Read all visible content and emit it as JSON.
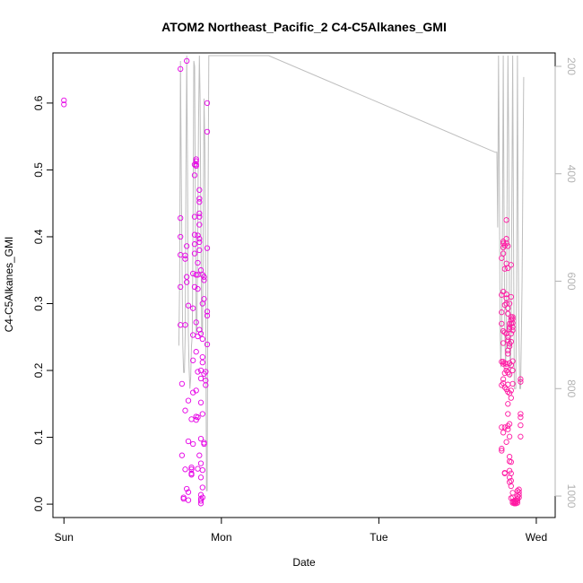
{
  "chart_data": {
    "type": "scatter",
    "title": "ATOM2 Northeast_Pacific_2 C4-C5Alkanes_GMI",
    "xlabel": "Date",
    "ylabel": "C4-C5Alkanes_GMI",
    "x_tick_labels": [
      "Sun",
      "Mon",
      "Tue",
      "Wed"
    ],
    "y_ticks": [
      "0.0",
      "0.1",
      "0.2",
      "0.3",
      "0.4",
      "0.5",
      "0.6"
    ],
    "right_axis_ticks": [
      "200",
      "400",
      "600",
      "800",
      "1000"
    ],
    "xlim": [
      -0.07,
      3.12
    ],
    "ylim": [
      -0.02,
      0.675
    ],
    "right_ylim": [
      1040,
      175
    ],
    "right_axis_reversed": true,
    "grid": false,
    "legend": "none",
    "colors": {
      "points": "#e600e6",
      "points_late": "#ff1aa3",
      "line": "#bebebe",
      "axis": "#000000",
      "right_axis": "#b3b3b3"
    },
    "series": [
      {
        "type": "scatter",
        "values": [
          [
            0.0,
            0.604
          ],
          [
            0.0,
            0.598
          ],
          [
            0.74,
            0.651
          ],
          [
            0.74,
            0.428
          ],
          [
            0.74,
            0.4
          ],
          [
            0.74,
            0.373
          ],
          [
            0.74,
            0.325
          ],
          [
            0.74,
            0.268
          ],
          [
            0.75,
            0.18
          ],
          [
            0.75,
            0.073
          ],
          [
            0.76,
            0.01
          ],
          [
            0.76,
            0.008
          ],
          [
            0.77,
            0.372
          ],
          [
            0.77,
            0.367
          ],
          [
            0.77,
            0.268
          ],
          [
            0.77,
            0.14
          ],
          [
            0.77,
            0.052
          ],
          [
            0.78,
            0.386
          ],
          [
            0.78,
            0.34
          ],
          [
            0.78,
            0.332
          ],
          [
            0.78,
            0.023
          ],
          [
            0.78,
            0.663
          ],
          [
            0.79,
            0.297
          ],
          [
            0.79,
            0.155
          ],
          [
            0.79,
            0.094
          ],
          [
            0.79,
            0.018
          ],
          [
            0.79,
            0.006
          ],
          [
            0.81,
            0.046
          ],
          [
            0.81,
            0.044
          ],
          [
            0.81,
            0.055
          ],
          [
            0.81,
            0.052
          ],
          [
            0.81,
            0.127
          ],
          [
            0.82,
            0.345
          ],
          [
            0.82,
            0.293
          ],
          [
            0.82,
            0.253
          ],
          [
            0.82,
            0.215
          ],
          [
            0.82,
            0.167
          ],
          [
            0.82,
            0.09
          ],
          [
            0.83,
            0.492
          ],
          [
            0.83,
            0.508
          ],
          [
            0.83,
            0.43
          ],
          [
            0.83,
            0.403
          ],
          [
            0.83,
            0.389
          ],
          [
            0.83,
            0.375
          ],
          [
            0.83,
            0.325
          ],
          [
            0.84,
            0.516
          ],
          [
            0.84,
            0.513
          ],
          [
            0.84,
            0.506
          ],
          [
            0.84,
            0.508
          ],
          [
            0.84,
            0.343
          ],
          [
            0.84,
            0.272
          ],
          [
            0.84,
            0.228
          ],
          [
            0.84,
            0.17
          ],
          [
            0.84,
            0.131
          ],
          [
            0.84,
            0.126
          ],
          [
            0.85,
            0.402
          ],
          [
            0.85,
            0.361
          ],
          [
            0.85,
            0.343
          ],
          [
            0.85,
            0.322
          ],
          [
            0.85,
            0.251
          ],
          [
            0.85,
            0.198
          ],
          [
            0.85,
            0.13
          ],
          [
            0.85,
            0.053
          ],
          [
            0.86,
            0.47
          ],
          [
            0.86,
            0.457
          ],
          [
            0.86,
            0.452
          ],
          [
            0.86,
            0.435
          ],
          [
            0.86,
            0.43
          ],
          [
            0.86,
            0.418
          ],
          [
            0.86,
            0.397
          ],
          [
            0.86,
            0.392
          ],
          [
            0.86,
            0.38
          ],
          [
            0.86,
            0.261
          ],
          [
            0.86,
            0.073
          ],
          [
            0.87,
            0.35
          ],
          [
            0.87,
            0.255
          ],
          [
            0.87,
            0.2
          ],
          [
            0.87,
            0.188
          ],
          [
            0.87,
            0.152
          ],
          [
            0.87,
            0.098
          ],
          [
            0.87,
            0.061
          ],
          [
            0.87,
            0.04
          ],
          [
            0.87,
            0.014
          ],
          [
            0.87,
            0.008
          ],
          [
            0.87,
            0.005
          ],
          [
            0.87,
            0.001
          ],
          [
            0.88,
            0.343
          ],
          [
            0.88,
            0.3
          ],
          [
            0.88,
            0.247
          ],
          [
            0.88,
            0.22
          ],
          [
            0.88,
            0.212
          ],
          [
            0.88,
            0.135
          ],
          [
            0.88,
            0.051
          ],
          [
            0.88,
            0.025
          ],
          [
            0.88,
            0.01
          ],
          [
            0.89,
            0.34
          ],
          [
            0.89,
            0.335
          ],
          [
            0.89,
            0.307
          ],
          [
            0.89,
            0.195
          ],
          [
            0.89,
            0.092
          ],
          [
            0.89,
            0.09
          ],
          [
            0.9,
            0.198
          ],
          [
            0.9,
            0.185
          ],
          [
            0.9,
            0.178
          ],
          [
            0.91,
            0.239
          ],
          [
            0.91,
            0.288
          ],
          [
            0.91,
            0.282
          ],
          [
            0.91,
            0.383
          ],
          [
            0.91,
            0.6
          ],
          [
            0.91,
            0.557
          ],
          [
            2.78,
            0.368
          ],
          [
            2.78,
            0.313
          ],
          [
            2.78,
            0.287
          ],
          [
            2.78,
            0.27
          ],
          [
            2.78,
            0.213
          ],
          [
            2.78,
            0.178
          ],
          [
            2.78,
            0.115
          ],
          [
            2.78,
            0.083
          ],
          [
            2.78,
            0.08
          ],
          [
            2.79,
            0.393
          ],
          [
            2.79,
            0.39
          ],
          [
            2.79,
            0.384
          ],
          [
            2.79,
            0.375
          ],
          [
            2.79,
            0.318
          ],
          [
            2.79,
            0.259
          ],
          [
            2.79,
            0.241
          ],
          [
            2.79,
            0.213
          ],
          [
            2.79,
            0.21
          ],
          [
            2.79,
            0.187
          ],
          [
            2.79,
            0.181
          ],
          [
            2.79,
            0.107
          ],
          [
            2.8,
            0.387
          ],
          [
            2.8,
            0.352
          ],
          [
            2.8,
            0.298
          ],
          [
            2.8,
            0.257
          ],
          [
            2.8,
            0.211
          ],
          [
            2.8,
            0.196
          ],
          [
            2.8,
            0.175
          ],
          [
            2.8,
            0.115
          ],
          [
            2.8,
            0.047
          ],
          [
            2.8,
            0.046
          ],
          [
            2.81,
            0.425
          ],
          [
            2.81,
            0.397
          ],
          [
            2.81,
            0.39
          ],
          [
            2.81,
            0.36
          ],
          [
            2.81,
            0.314
          ],
          [
            2.81,
            0.308
          ],
          [
            2.81,
            0.3
          ],
          [
            2.81,
            0.255
          ],
          [
            2.81,
            0.21
          ],
          [
            2.81,
            0.205
          ],
          [
            2.81,
            0.2
          ],
          [
            2.81,
            0.172
          ],
          [
            2.81,
            0.093
          ],
          [
            2.82,
            0.386
          ],
          [
            2.82,
            0.353
          ],
          [
            2.82,
            0.293
          ],
          [
            2.82,
            0.285
          ],
          [
            2.82,
            0.25
          ],
          [
            2.82,
            0.245
          ],
          [
            2.82,
            0.23
          ],
          [
            2.82,
            0.225
          ],
          [
            2.82,
            0.197
          ],
          [
            2.82,
            0.179
          ],
          [
            2.82,
            0.168
          ],
          [
            2.82,
            0.15
          ],
          [
            2.82,
            0.135
          ],
          [
            2.82,
            0.117
          ],
          [
            2.82,
            0.112
          ],
          [
            2.83,
            0.3
          ],
          [
            2.83,
            0.27
          ],
          [
            2.83,
            0.265
          ],
          [
            2.83,
            0.262
          ],
          [
            2.83,
            0.24
          ],
          [
            2.83,
            0.236
          ],
          [
            2.83,
            0.211
          ],
          [
            2.83,
            0.194
          ],
          [
            2.83,
            0.166
          ],
          [
            2.83,
            0.12
          ],
          [
            2.83,
            0.101
          ],
          [
            2.83,
            0.071
          ],
          [
            2.83,
            0.064
          ],
          [
            2.83,
            0.05
          ],
          [
            2.83,
            0.04
          ],
          [
            2.83,
            0.033
          ],
          [
            2.84,
            0.358
          ],
          [
            2.84,
            0.31
          ],
          [
            2.84,
            0.28
          ],
          [
            2.84,
            0.276
          ],
          [
            2.84,
            0.27
          ],
          [
            2.84,
            0.255
          ],
          [
            2.84,
            0.243
          ],
          [
            2.84,
            0.208
          ],
          [
            2.84,
            0.17
          ],
          [
            2.84,
            0.159
          ],
          [
            2.84,
            0.063
          ],
          [
            2.84,
            0.046
          ],
          [
            2.84,
            0.035
          ],
          [
            2.84,
            0.027
          ],
          [
            2.84,
            0.009
          ],
          [
            2.85,
            0.28
          ],
          [
            2.85,
            0.277
          ],
          [
            2.85,
            0.271
          ],
          [
            2.85,
            0.265
          ],
          [
            2.85,
            0.26
          ],
          [
            2.85,
            0.214
          ],
          [
            2.85,
            0.2
          ],
          [
            2.85,
            0.18
          ],
          [
            2.85,
            0.002
          ],
          [
            2.85,
            0.004
          ],
          [
            2.85,
            0.01
          ],
          [
            2.85,
            0.017
          ],
          [
            2.86,
            0.001
          ],
          [
            2.86,
            0.002
          ],
          [
            2.86,
            0.003
          ],
          [
            2.86,
            0.004
          ],
          [
            2.86,
            0.005
          ],
          [
            2.87,
            0.001
          ],
          [
            2.87,
            0.003
          ],
          [
            2.87,
            0.006
          ],
          [
            2.88,
            0.002
          ],
          [
            2.88,
            0.005
          ],
          [
            2.88,
            0.008
          ],
          [
            2.88,
            0.012
          ],
          [
            2.88,
            0.02
          ],
          [
            2.89,
            0.01
          ],
          [
            2.89,
            0.014
          ],
          [
            2.89,
            0.018
          ],
          [
            2.89,
            0.022
          ],
          [
            2.9,
            0.135
          ],
          [
            2.9,
            0.13
          ],
          [
            2.9,
            0.118
          ],
          [
            2.9,
            0.101
          ],
          [
            2.9,
            0.183
          ],
          [
            2.9,
            0.187
          ]
        ]
      },
      {
        "type": "line",
        "axis": "right",
        "values": [
          [
            0.73,
            720
          ],
          [
            0.735,
            600
          ],
          [
            0.74,
            190
          ],
          [
            0.745,
            400
          ],
          [
            0.75,
            560
          ],
          [
            0.755,
            720
          ],
          [
            0.76,
            770
          ],
          [
            0.765,
            770
          ],
          [
            0.77,
            700
          ],
          [
            0.775,
            400
          ],
          [
            0.78,
            180
          ],
          [
            0.785,
            400
          ],
          [
            0.79,
            700
          ],
          [
            0.795,
            760
          ],
          [
            0.8,
            800
          ],
          [
            0.805,
            780
          ],
          [
            0.81,
            720
          ],
          [
            0.815,
            700
          ],
          [
            0.82,
            500
          ],
          [
            0.825,
            190
          ],
          [
            0.83,
            200
          ],
          [
            0.835,
            500
          ],
          [
            0.84,
            700
          ],
          [
            0.845,
            690
          ],
          [
            0.85,
            500
          ],
          [
            0.855,
            300
          ],
          [
            0.86,
            180
          ],
          [
            0.865,
            260
          ],
          [
            0.87,
            500
          ],
          [
            0.875,
            700
          ],
          [
            0.88,
            690
          ],
          [
            0.885,
            500
          ],
          [
            0.89,
            260
          ],
          [
            0.895,
            350
          ],
          [
            0.9,
            600
          ],
          [
            0.905,
            990
          ],
          [
            0.91,
            990
          ],
          [
            0.915,
            500
          ],
          [
            0.92,
            180
          ],
          [
            1.3,
            180
          ],
          [
            2.74,
            360
          ],
          [
            2.75,
            360
          ],
          [
            2.755,
            500
          ],
          [
            2.76,
            180
          ],
          [
            2.765,
            400
          ],
          [
            2.77,
            700
          ],
          [
            2.775,
            760
          ],
          [
            2.78,
            700
          ],
          [
            2.785,
            500
          ],
          [
            2.79,
            180
          ],
          [
            2.795,
            450
          ],
          [
            2.8,
            700
          ],
          [
            2.805,
            760
          ],
          [
            2.81,
            700
          ],
          [
            2.815,
            400
          ],
          [
            2.82,
            180
          ],
          [
            2.825,
            350
          ],
          [
            2.83,
            700
          ],
          [
            2.835,
            780
          ],
          [
            2.84,
            700
          ],
          [
            2.845,
            450
          ],
          [
            2.85,
            180
          ],
          [
            2.855,
            500
          ],
          [
            2.86,
            800
          ],
          [
            2.865,
            800
          ],
          [
            2.87,
            800
          ],
          [
            2.875,
            600
          ],
          [
            2.88,
            180
          ],
          [
            2.885,
            500
          ],
          [
            2.89,
            700
          ],
          [
            2.895,
            800
          ],
          [
            2.9,
            800
          ],
          [
            2.905,
            700
          ],
          [
            2.91,
            600
          ],
          [
            2.915,
            400
          ],
          [
            2.92,
            220
          ]
        ]
      }
    ]
  }
}
